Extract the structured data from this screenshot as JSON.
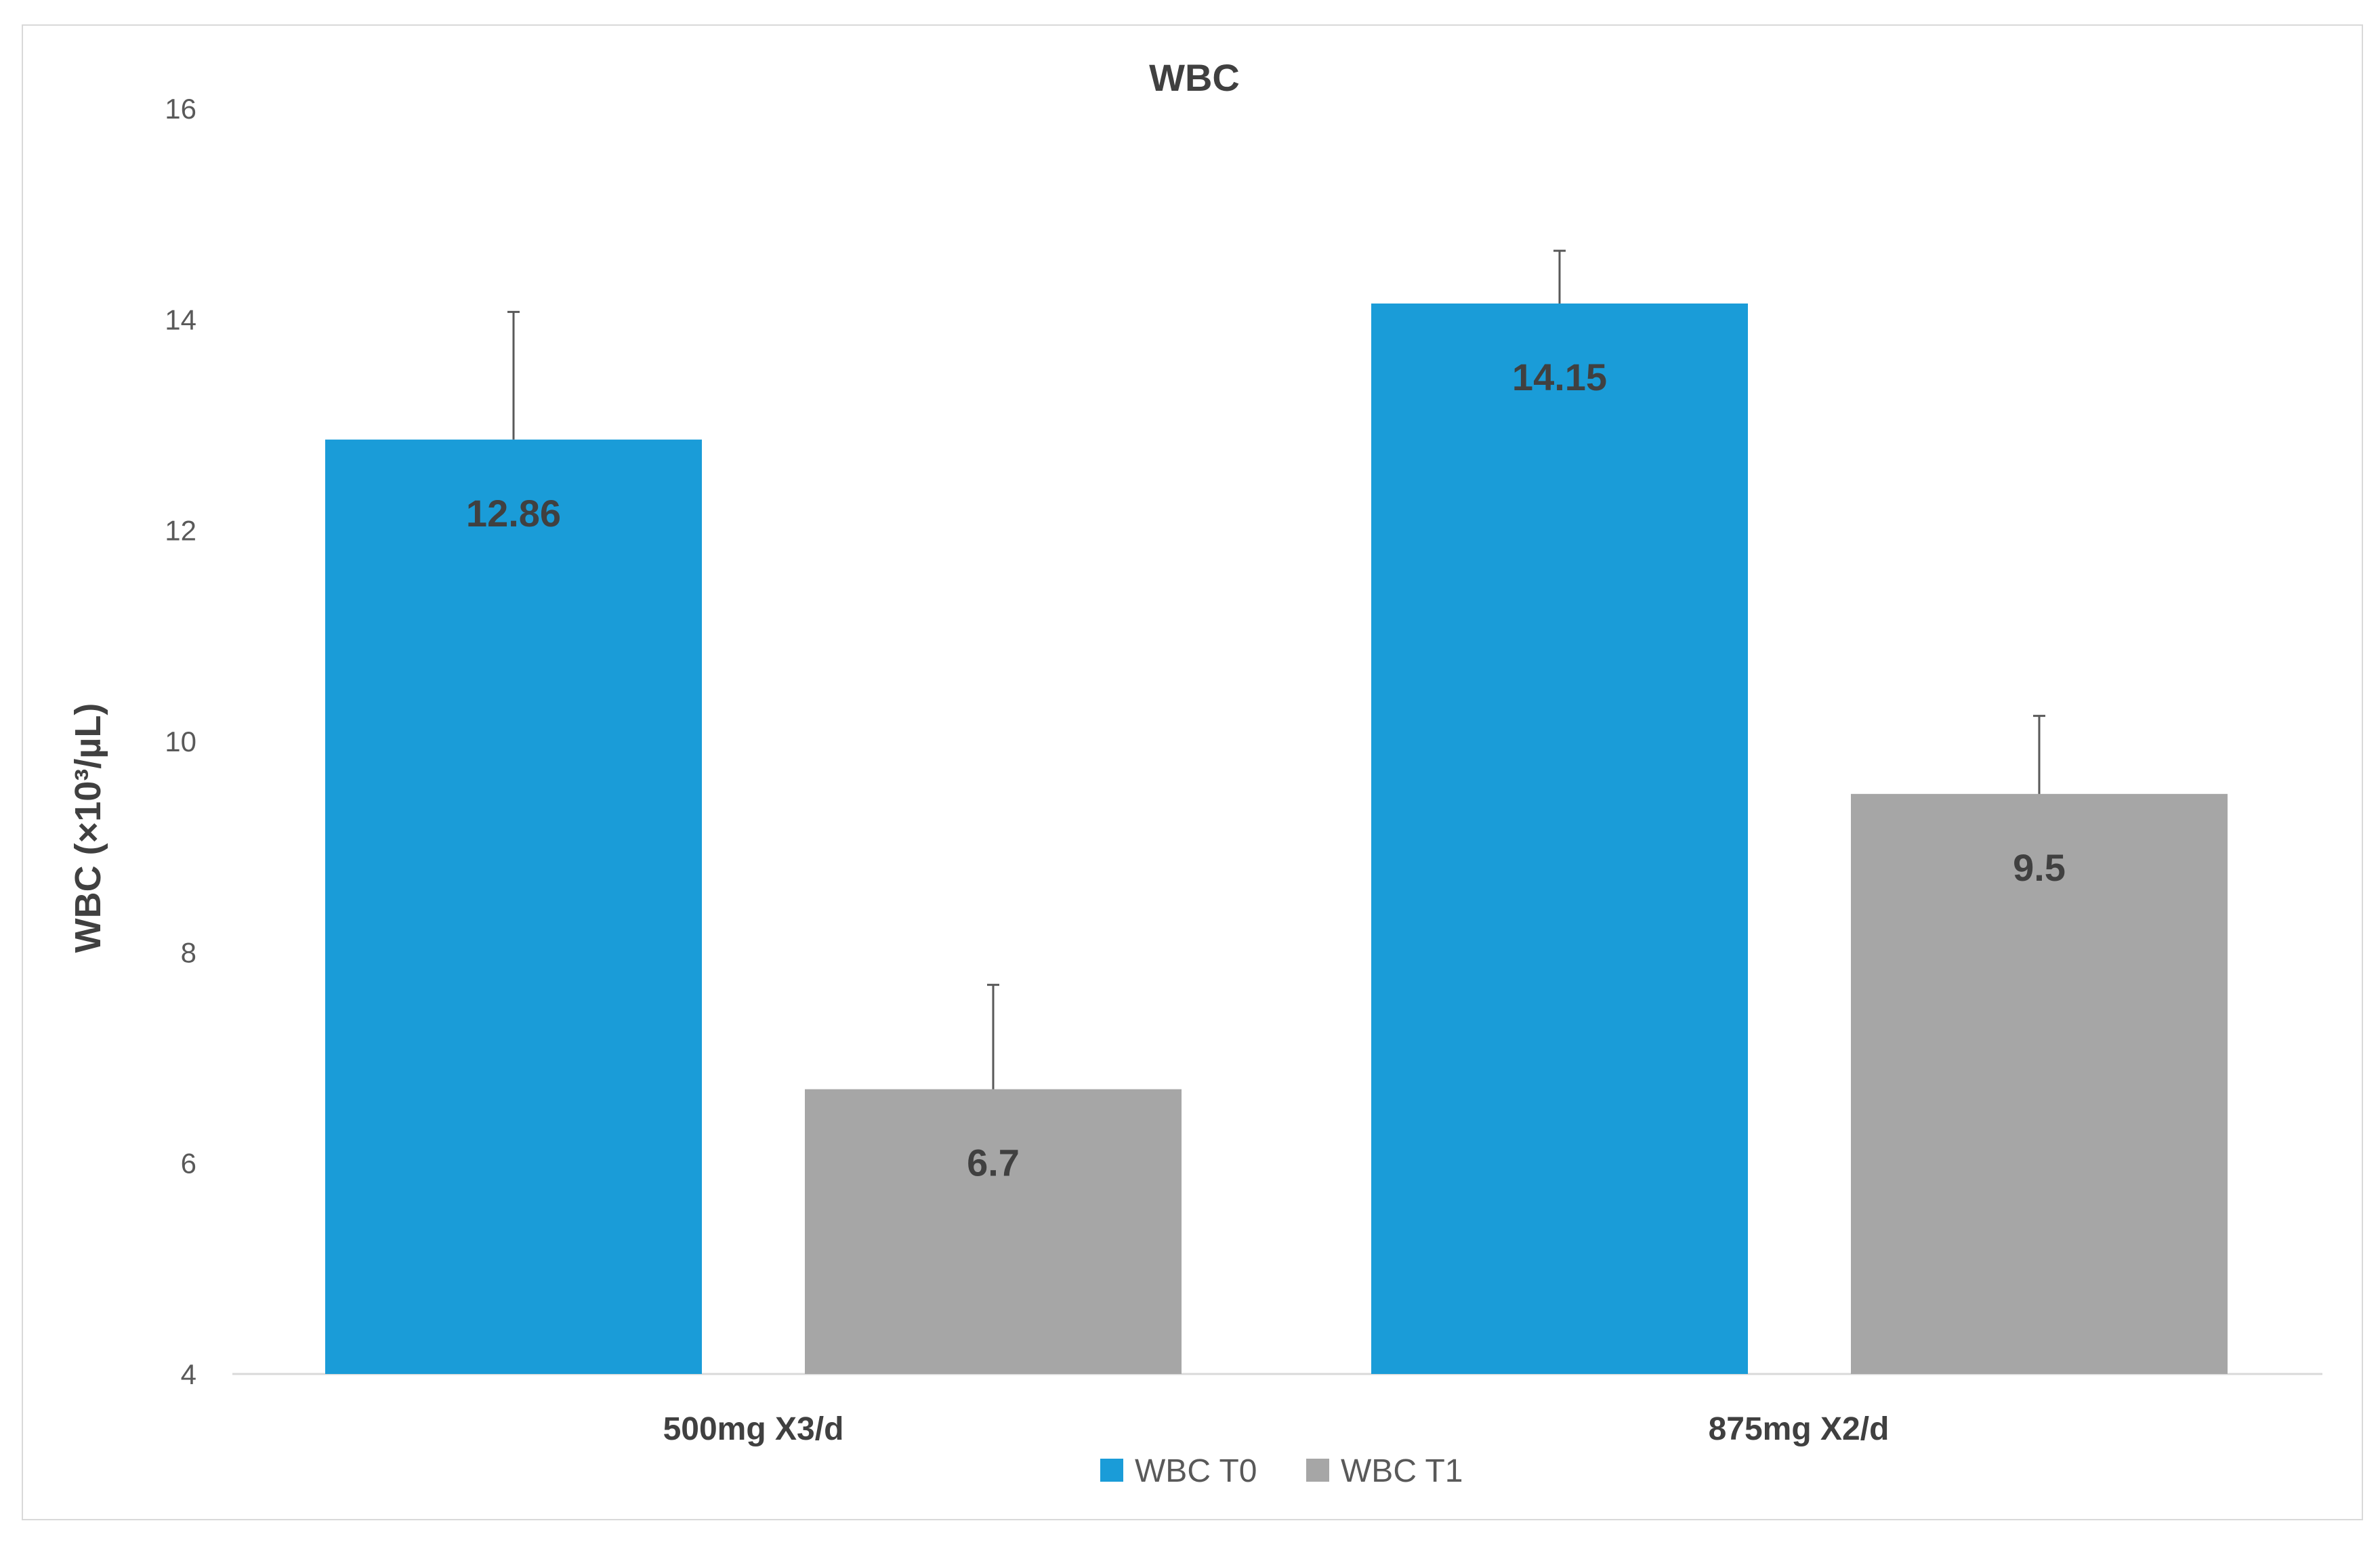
{
  "chart_data": {
    "type": "bar",
    "title": "WBC",
    "xlabel": "",
    "ylabel": "WBC (×10³/µL)",
    "ylim": [
      4,
      16
    ],
    "yticks": [
      4,
      6,
      8,
      10,
      12,
      14,
      16
    ],
    "grid": false,
    "legend_position": "bottom",
    "categories": [
      "500mg X3/d",
      "875mg X2/d"
    ],
    "series": [
      {
        "name": "WBC T0",
        "color": "#1a9cd8",
        "values": [
          12.86,
          14.15
        ],
        "error_upper": [
          14.07,
          14.65
        ],
        "labels": [
          "12.86",
          "14.15"
        ]
      },
      {
        "name": "WBC T1",
        "color": "#a6a6a6",
        "values": [
          6.7,
          9.5
        ],
        "error_upper": [
          7.69,
          10.24
        ],
        "labels": [
          "6.7",
          "9.5"
        ]
      }
    ]
  }
}
